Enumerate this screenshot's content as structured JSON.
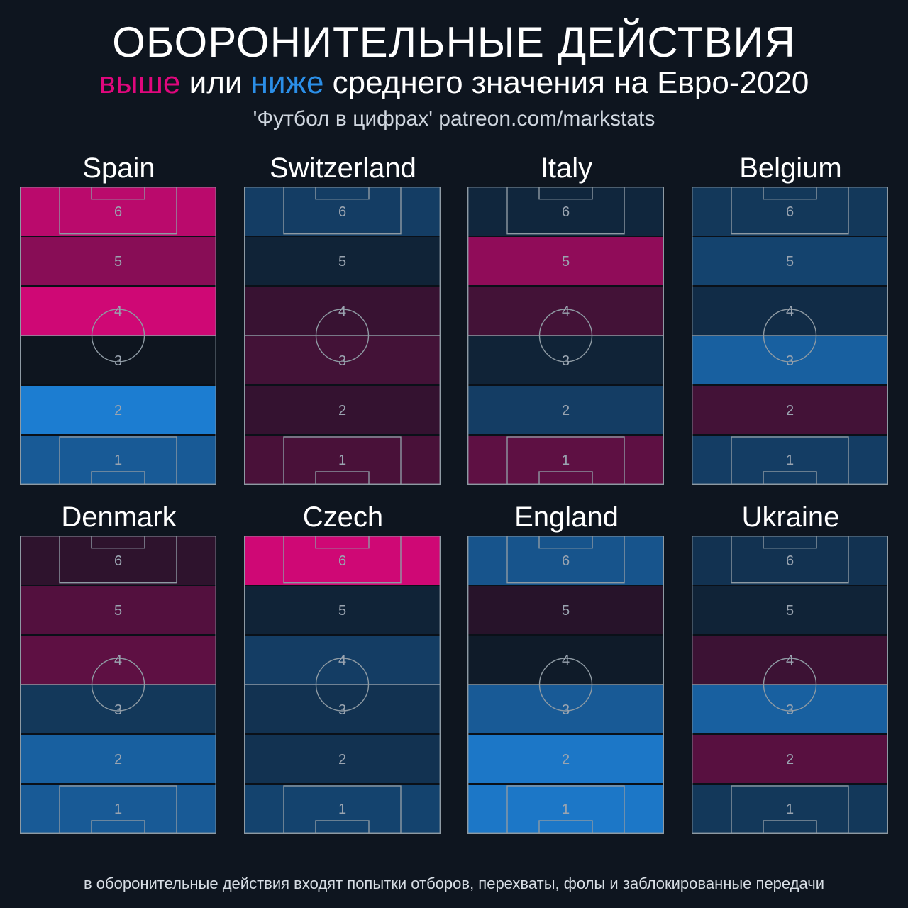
{
  "header": {
    "title": "ОБОРОНИТЕЛЬНЫЕ ДЕЙСТВИЯ",
    "subtitle_above": "выше",
    "subtitle_or": " или ",
    "subtitle_below": "ниже",
    "subtitle_rest": " среднего значения на Евро-2020",
    "credit": "'Футбол в цифрах' patreon.com/markstats"
  },
  "footnote": "в оборонительные действия входят попытки отборов, перехваты, фолы и заблокированные передачи",
  "colors": {
    "above": "#e0077d",
    "below": "#1e88e5",
    "neutral": "#0e151f",
    "pitch_lines": "#8e9aa3",
    "zone_numbers": "#9aa4b0"
  },
  "chart_data": {
    "type": "heatmap",
    "title": "ОБОРОНИТЕЛЬНЫЕ ДЕЙСТВИЯ",
    "subtitle": "выше или ниже среднего значения на Евро-2020",
    "legend": {
      "above": "выше",
      "below": "ниже"
    },
    "zones": [
      "6",
      "5",
      "4",
      "3",
      "2",
      "1"
    ],
    "value_scale": "relative deviation from tournament average, -1 (below) to +1 (above)",
    "teams": [
      {
        "name": "Spain",
        "zones": [
          0.82,
          0.58,
          0.92,
          0.0,
          -0.9,
          -0.6
        ]
      },
      {
        "name": "Switzerland",
        "zones": [
          -0.35,
          -0.12,
          0.2,
          0.25,
          0.18,
          0.28
        ]
      },
      {
        "name": "Italy",
        "zones": [
          -0.15,
          0.62,
          0.25,
          -0.12,
          -0.35,
          0.38
        ]
      },
      {
        "name": "Belgium",
        "zones": [
          -0.3,
          -0.4,
          -0.2,
          -0.65,
          0.25,
          -0.35
        ]
      },
      {
        "name": "Denmark",
        "zones": [
          0.15,
          0.33,
          0.38,
          -0.3,
          -0.65,
          -0.6
        ]
      },
      {
        "name": "Czech",
        "zones": [
          0.92,
          -0.12,
          -0.35,
          -0.25,
          -0.25,
          -0.4
        ]
      },
      {
        "name": "England",
        "zones": [
          -0.55,
          0.12,
          -0.05,
          -0.6,
          -0.85,
          -0.85
        ]
      },
      {
        "name": "Ukraine",
        "zones": [
          -0.25,
          -0.12,
          0.22,
          -0.65,
          0.35,
          -0.3
        ]
      }
    ]
  }
}
